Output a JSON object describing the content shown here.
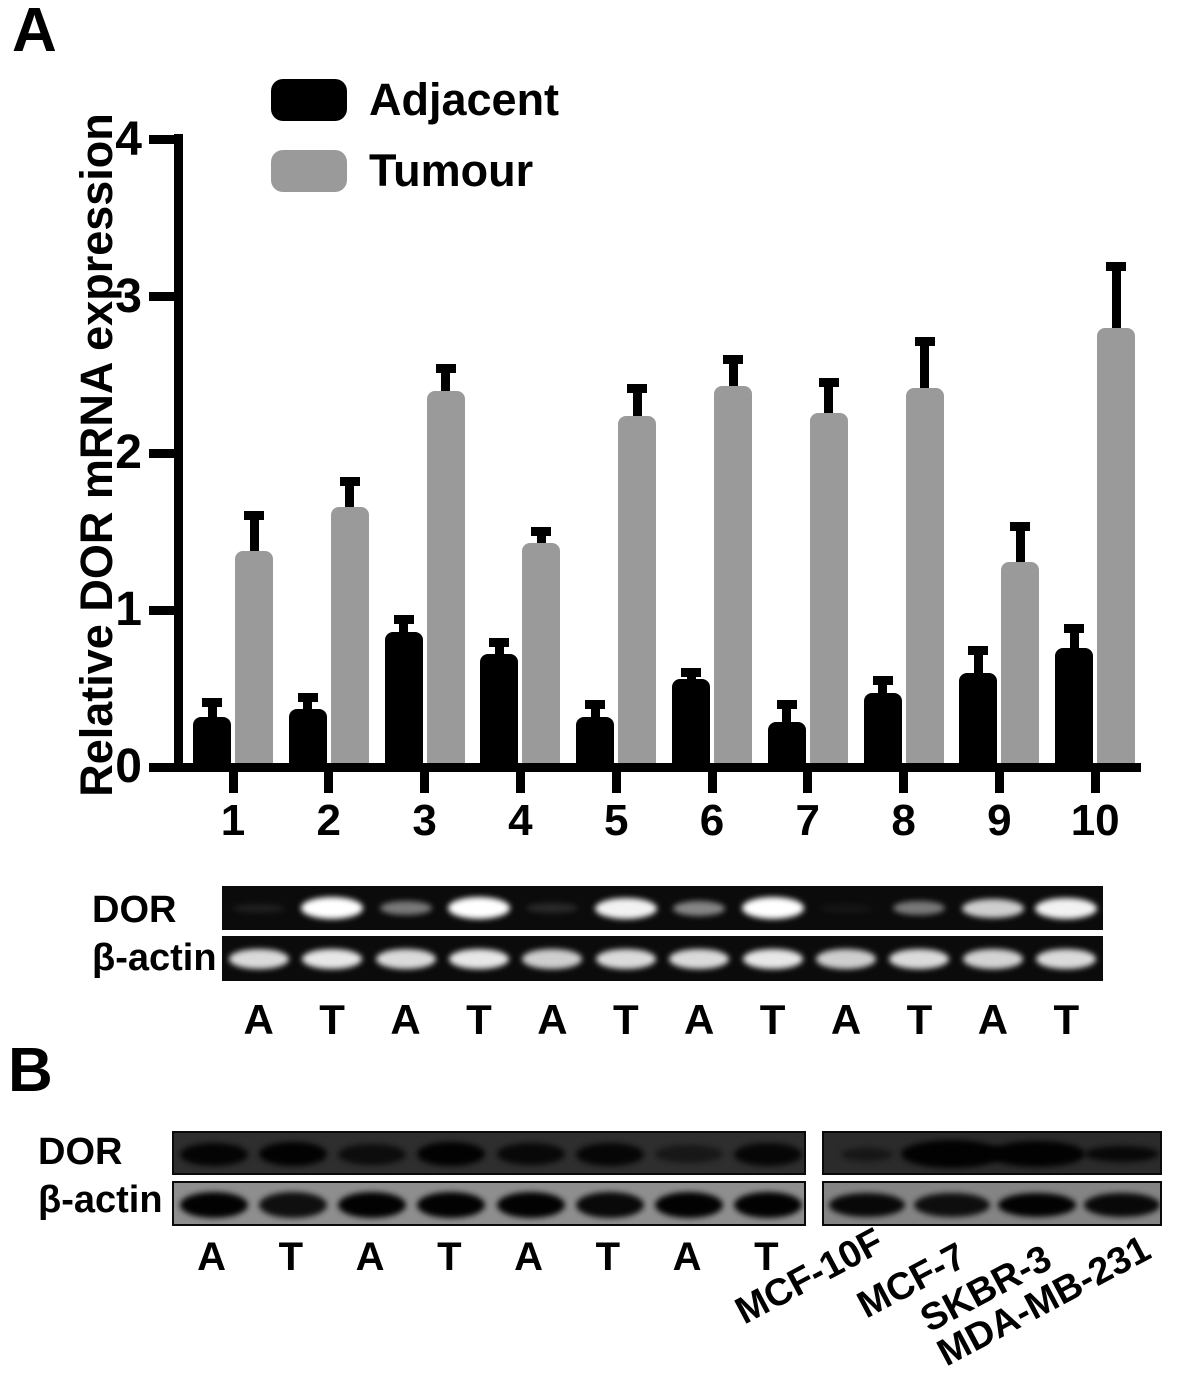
{
  "panels": {
    "a_label": "A",
    "b_label": "B"
  },
  "chart_data": {
    "type": "bar",
    "title": "",
    "xlabel": "",
    "ylabel": "Relative DOR mRNA expression",
    "ylim": [
      0,
      4
    ],
    "yticks": [
      0,
      1,
      2,
      3,
      4
    ],
    "grid": "off",
    "legend_position": "top-left-inside",
    "categories": [
      "1",
      "2",
      "3",
      "4",
      "5",
      "6",
      "7",
      "8",
      "9",
      "10"
    ],
    "legend": [
      {
        "label": "Adjacent",
        "color": "#000000"
      },
      {
        "label": "Tumour",
        "color": "#9a9a9a"
      }
    ],
    "series": [
      {
        "name": "Adjacent",
        "color": "#000000",
        "values": [
          0.32,
          0.37,
          0.86,
          0.72,
          0.32,
          0.56,
          0.29,
          0.47,
          0.6,
          0.76
        ],
        "errors_upper": [
          0.12,
          0.1,
          0.11,
          0.1,
          0.11,
          0.07,
          0.14,
          0.11,
          0.17,
          0.15
        ]
      },
      {
        "name": "Tumour",
        "color": "#9a9a9a",
        "values": [
          1.38,
          1.66,
          2.4,
          1.43,
          2.24,
          2.43,
          2.26,
          2.42,
          1.31,
          2.8
        ],
        "errors_upper": [
          0.25,
          0.19,
          0.17,
          0.1,
          0.2,
          0.2,
          0.22,
          0.32,
          0.25,
          0.42
        ]
      }
    ]
  },
  "gel_a": {
    "rows": [
      {
        "label": "DOR",
        "band_intensities": [
          0.08,
          1.0,
          0.45,
          1.0,
          0.12,
          0.95,
          0.5,
          1.0,
          0.04,
          0.45,
          0.8,
          0.95
        ]
      },
      {
        "label": "β-actin",
        "band_intensities": [
          0.85,
          0.9,
          0.85,
          0.9,
          0.8,
          0.85,
          0.85,
          0.9,
          0.8,
          0.85,
          0.82,
          0.85
        ]
      }
    ],
    "lane_labels": [
      "A",
      "T",
      "A",
      "T",
      "A",
      "T",
      "A",
      "T",
      "A",
      "T",
      "A",
      "T"
    ]
  },
  "panel_b": {
    "row_labels": [
      "DOR",
      "β-actin"
    ],
    "left_blot": {
      "lane_labels": [
        "A",
        "T",
        "A",
        "T",
        "A",
        "T",
        "A",
        "T"
      ],
      "dor_band_opacities": [
        0.95,
        1.0,
        0.75,
        1.0,
        0.85,
        0.9,
        0.5,
        0.9
      ],
      "actin_band_opacities": [
        1.0,
        0.9,
        1.0,
        1.0,
        1.0,
        0.95,
        1.0,
        1.0
      ]
    },
    "right_blot": {
      "lane_labels": [
        "MCF-10F",
        "MCF-7",
        "SKBR-3",
        "MDA-MB-231"
      ],
      "dor_band_opacities": [
        0.5,
        1.0,
        1.0,
        0.85
      ],
      "actin_band_opacities": [
        0.95,
        0.9,
        1.0,
        0.95
      ]
    }
  }
}
